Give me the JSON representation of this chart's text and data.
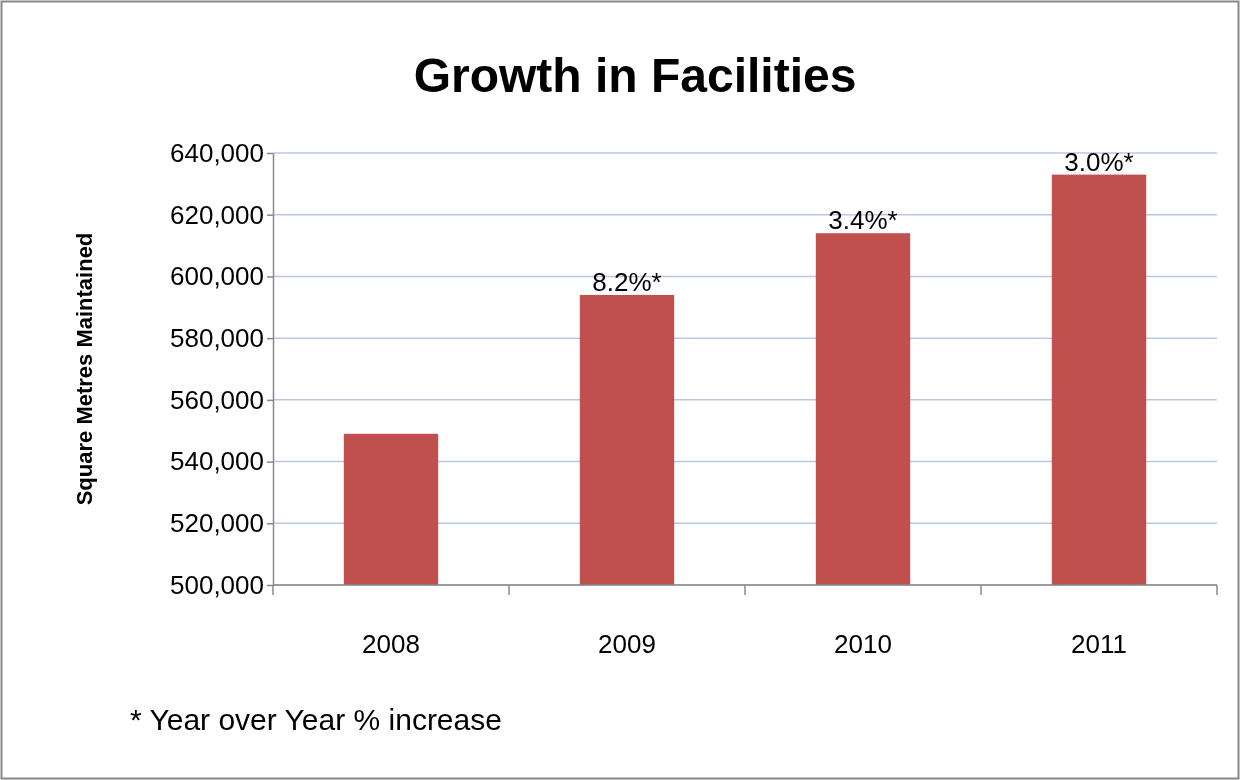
{
  "chart_data": {
    "type": "bar",
    "title": "Growth in Facilities",
    "ylabel": "Square Metres Maintained",
    "categories": [
      "2008",
      "2009",
      "2010",
      "2011"
    ],
    "values": [
      549000,
      594000,
      614000,
      633000
    ],
    "color": "#c0504d",
    "ylim": [
      500000,
      640000
    ],
    "yticks": [
      {
        "value": 500000,
        "label": "500,000"
      },
      {
        "value": 520000,
        "label": "520,000"
      },
      {
        "value": 540000,
        "label": "540,000"
      },
      {
        "value": 560000,
        "label": "560,000"
      },
      {
        "value": 580000,
        "label": "580,000"
      },
      {
        "value": 600000,
        "label": "600,000"
      },
      {
        "value": 620000,
        "label": "620,000"
      },
      {
        "value": 640000,
        "label": "640,000"
      }
    ],
    "grid": "y",
    "annotations": [
      {
        "text": "8.2%*",
        "x": "2009",
        "y": 594000
      },
      {
        "text": "3.4%*",
        "x": "2010",
        "y": 614000
      },
      {
        "text": "3.0%*",
        "x": "2011",
        "y": 633000
      },
      "* Year over Year % increase"
    ]
  }
}
